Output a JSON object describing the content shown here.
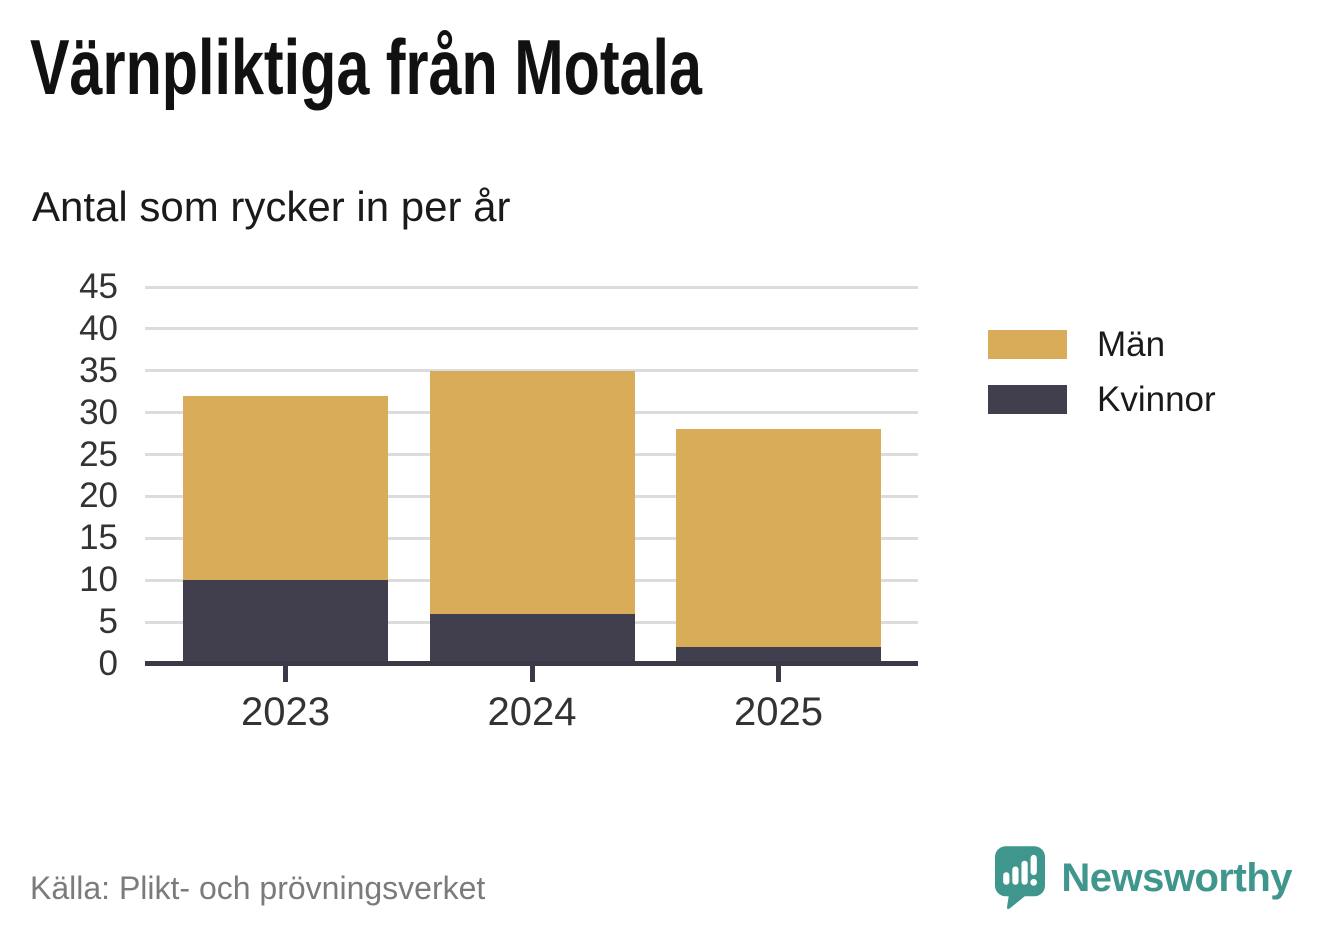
{
  "title": "Värnpliktiga från Motala",
  "subtitle": "Antal som rycker in per år",
  "source_note": "Källa: Plikt- och prövningsverket",
  "brand": {
    "wordmark": "Newsworthy",
    "logo_icon": "newsworthy-speech-bubble-bar-chart-icon"
  },
  "colors": {
    "men_bar": "#D9AC59",
    "women_bar": "#413F4E",
    "gridline": "#DCDCDC",
    "axis": "#3B3947",
    "axis_text": "#333333",
    "title_text": "#111111",
    "source_text": "#7B7B7B",
    "brand_teal": "#3F968C"
  },
  "legend": {
    "items": [
      {
        "label": "Män",
        "color": "#D9AC59"
      },
      {
        "label": "Kvinnor",
        "color": "#413F4E"
      }
    ]
  },
  "chart_data": {
    "type": "bar",
    "stacked": true,
    "title": "Värnpliktiga från Motala",
    "subtitle": "Antal som rycker in per år",
    "categories": [
      "2023",
      "2024",
      "2025"
    ],
    "series": [
      {
        "name": "Kvinnor",
        "slug": "kvinnor",
        "color": "#413F4E",
        "values": [
          10,
          6,
          2
        ]
      },
      {
        "name": "Män",
        "slug": "man",
        "color": "#D9AC59",
        "values": [
          22,
          29,
          26
        ]
      }
    ],
    "stack_totals": [
      32,
      35,
      28
    ],
    "xlabel": "",
    "ylabel": "",
    "ylim": [
      0,
      45
    ],
    "ytick_step": 5,
    "grid": true,
    "legend_position": "right"
  }
}
